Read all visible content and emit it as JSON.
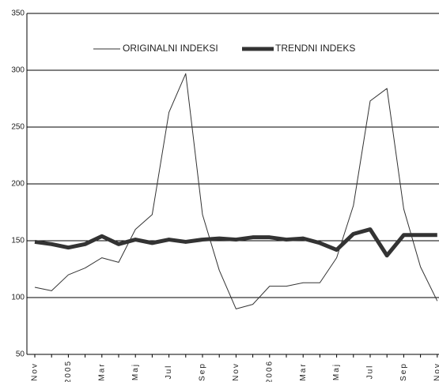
{
  "chart_data": {
    "type": "line",
    "categories": [
      "Nov",
      null,
      "2005",
      null,
      "Mar",
      null,
      "Maj",
      null,
      "Jul",
      null,
      "Sep",
      null,
      "Nov",
      null,
      "2006",
      null,
      "Mar",
      null,
      "Maj",
      null,
      "Jul",
      null,
      "Sep",
      null,
      "Nov"
    ],
    "series": [
      {
        "name": "ORIGINALNI INDEKSI",
        "color": "#333333",
        "width": 1,
        "values": [
          109,
          106,
          120,
          126,
          135,
          131,
          160,
          173,
          263,
          297,
          173,
          124,
          90,
          94,
          110,
          110,
          113,
          113,
          135,
          181,
          273,
          284,
          178,
          127,
          97
        ]
      },
      {
        "name": "TRENDNI INDEKS",
        "color": "#333333",
        "width": 5,
        "values": [
          149,
          147,
          144,
          147,
          154,
          147,
          151,
          148,
          151,
          149,
          151,
          152,
          151,
          153,
          153,
          151,
          152,
          148,
          142,
          156,
          160,
          137,
          155,
          155,
          155
        ]
      }
    ],
    "ylim": [
      50,
      350
    ],
    "yticks": [
      50,
      100,
      150,
      200,
      250,
      300,
      350
    ],
    "grid": true
  }
}
